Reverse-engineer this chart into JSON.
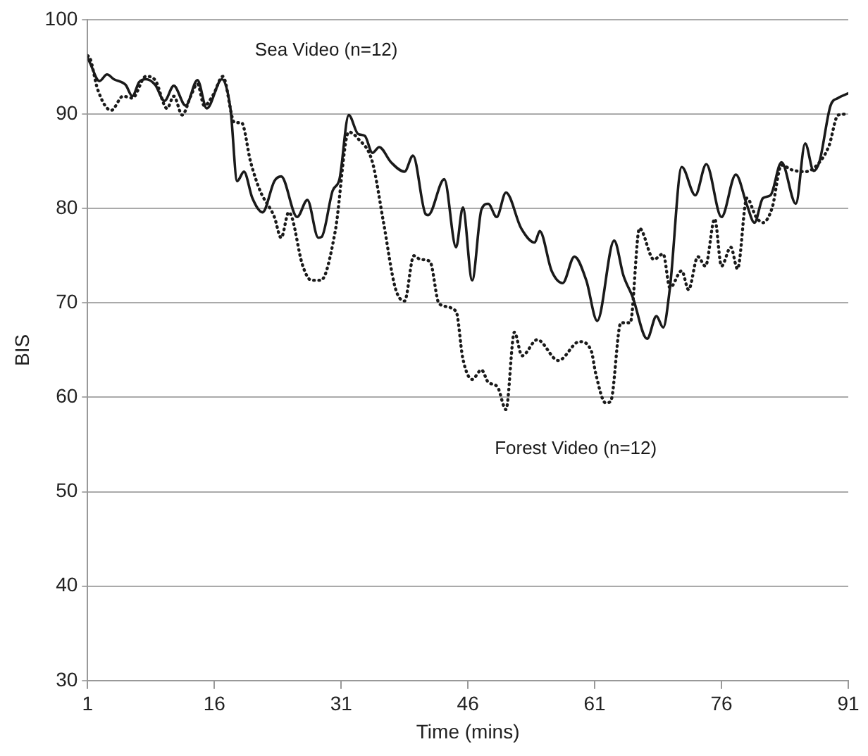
{
  "chart_data": {
    "type": "line",
    "xlabel": "Time (mins)",
    "ylabel": "BIS",
    "xlim": [
      1,
      91
    ],
    "xticks": [
      1,
      16,
      31,
      46,
      61,
      76,
      91
    ],
    "ylim": [
      30,
      100
    ],
    "yticks": [
      30,
      40,
      50,
      60,
      70,
      80,
      90,
      100
    ],
    "grid": "y",
    "legend": false,
    "marker": "none",
    "series": [
      {
        "name": "Sea Video (n=12)",
        "color": "#1a1a1a",
        "line_style": "solid",
        "x": [
          1,
          1.3,
          2.4,
          3.3,
          4.1,
          5.5,
          6.3,
          7.1,
          7.9,
          9.0,
          10.1,
          11.2,
          12.6,
          14.0,
          15.1,
          16.9,
          17.9,
          18.7,
          19.5,
          20.5,
          21.7,
          23.1,
          23.9,
          25.8,
          27.0,
          28.3,
          28.7,
          30.0,
          30.8,
          31.9,
          33.0,
          33.8,
          34.7,
          35.5,
          36.9,
          38.5,
          39.5,
          41.0,
          41.3,
          43.2,
          44.6,
          45.4,
          46.5,
          47.6,
          48.4,
          49.4,
          50.5,
          52.3,
          53.9,
          54.5,
          55.9,
          57.2,
          58.6,
          60.0,
          61.3,
          63.3,
          64.4,
          65.5,
          67.2,
          68.3,
          69.1,
          69.9,
          71.3,
          72.9,
          74.2,
          76.0,
          77.7,
          79.0,
          79.9,
          80.9,
          81.8,
          83.1,
          84.8,
          85.9,
          86.9,
          87.6,
          88.9,
          89.8,
          91
        ],
        "values": [
          96.0,
          95.4,
          93.5,
          94.2,
          93.7,
          93.1,
          91.9,
          93.4,
          93.7,
          93.1,
          91.4,
          93.0,
          90.9,
          93.6,
          90.6,
          93.7,
          90.6,
          82.9,
          83.9,
          81.1,
          79.6,
          82.9,
          83.4,
          79.1,
          80.9,
          76.9,
          77.0,
          81.9,
          83.1,
          89.9,
          87.9,
          87.7,
          85.9,
          86.5,
          84.9,
          83.9,
          85.6,
          79.4,
          79.3,
          83.1,
          75.9,
          80.1,
          72.4,
          79.9,
          80.5,
          79.1,
          81.7,
          77.9,
          76.4,
          77.6,
          73.4,
          72.1,
          74.9,
          72.4,
          68.1,
          76.6,
          72.9,
          70.6,
          66.2,
          68.6,
          67.4,
          71.6,
          84.4,
          81.4,
          84.7,
          79.1,
          83.6,
          80.4,
          78.5,
          81.1,
          81.4,
          84.9,
          80.5,
          86.9,
          84.0,
          85.0,
          90.9,
          91.7,
          92.2
        ]
      },
      {
        "name": "Forest Video (n=12)",
        "color": "#1a1a1a",
        "line_style": "dotted",
        "x": [
          1,
          1.3,
          2.2,
          3.8,
          5.2,
          6.3,
          7.9,
          9.0,
          10.4,
          11.2,
          12.2,
          13.2,
          14.0,
          14.8,
          15.9,
          17.0,
          18.4,
          19.2,
          20.3,
          21.4,
          23.1,
          23.9,
          24.8,
          25.2,
          26.4,
          27.5,
          28.6,
          30.3,
          31.9,
          33.0,
          34.7,
          36.0,
          37.4,
          38.5,
          39.6,
          40.4,
          41.5,
          42.6,
          44.6,
          45.4,
          46.5,
          47.6,
          48.4,
          49.5,
          50.5,
          51.5,
          52.4,
          54.2,
          56.7,
          59.2,
          60.6,
          61.1,
          62.3,
          62.9,
          64.1,
          65.2,
          66.3,
          68.0,
          69.1,
          69.9,
          71.3,
          72.1,
          73.2,
          74.1,
          75.2,
          76.0,
          77.1,
          77.9,
          79.0,
          80.1,
          80.9,
          82.0,
          83.1,
          84.3,
          85.9,
          87.3,
          88.7,
          89.8,
          91
        ],
        "values": [
          96.2,
          95.9,
          92.6,
          90.4,
          91.9,
          91.7,
          94.0,
          93.6,
          90.6,
          91.9,
          89.9,
          91.9,
          93.2,
          90.9,
          92.1,
          94.0,
          89.1,
          89.1,
          84.9,
          81.9,
          79.1,
          76.9,
          79.6,
          79.0,
          74.1,
          72.4,
          72.4,
          77.6,
          88.1,
          87.4,
          84.9,
          78.6,
          71.6,
          70.2,
          75.0,
          74.6,
          74.4,
          69.9,
          69.1,
          64.1,
          61.9,
          62.9,
          61.6,
          61.1,
          58.7,
          66.9,
          64.4,
          66.1,
          63.9,
          65.9,
          64.9,
          62.6,
          59.4,
          59.6,
          67.9,
          67.9,
          77.9,
          74.6,
          75.2,
          71.6,
          73.4,
          71.4,
          74.9,
          73.9,
          78.9,
          73.9,
          75.9,
          73.6,
          81.1,
          79.1,
          78.5,
          80.1,
          84.6,
          84.1,
          83.9,
          84.6,
          86.6,
          89.9,
          90.0
        ]
      }
    ]
  }
}
